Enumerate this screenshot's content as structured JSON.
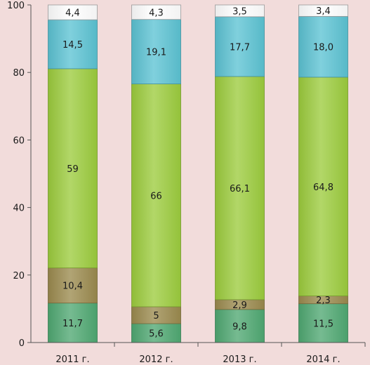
{
  "chart_data": {
    "type": "bar",
    "stacked": true,
    "categories": [
      "2011 г.",
      "2012 г.",
      "2013 г.",
      "2014 г."
    ],
    "ylim": [
      0,
      100
    ],
    "yticks": [
      0,
      20,
      40,
      60,
      80,
      100
    ],
    "grid": false,
    "legend": "none",
    "series": [
      {
        "values": [
          11.7,
          5.6,
          9.8,
          11.5
        ],
        "labels": [
          "11,7",
          "5,6",
          "9,8",
          "11,5"
        ],
        "color": "#4fa872"
      },
      {
        "values": [
          10.4,
          5,
          2.9,
          2.3
        ],
        "labels": [
          "10,4",
          "5",
          "2,9",
          "2,3"
        ],
        "color": "#9b8a4e"
      },
      {
        "values": [
          59,
          66,
          66.1,
          64.8
        ],
        "labels": [
          "59",
          "66",
          "66,1",
          "64,8"
        ],
        "color": "#9ccc3d"
      },
      {
        "values": [
          14.5,
          19.1,
          17.7,
          18.0
        ],
        "labels": [
          "14,5",
          "19,1",
          "17,7",
          "18,0"
        ],
        "color": "#5cc3d3"
      },
      {
        "values": [
          4.4,
          4.3,
          3.5,
          3.4
        ],
        "labels": [
          "4,4",
          "4,3",
          "3,5",
          "3,4"
        ],
        "color": "#ffffff"
      }
    ]
  }
}
